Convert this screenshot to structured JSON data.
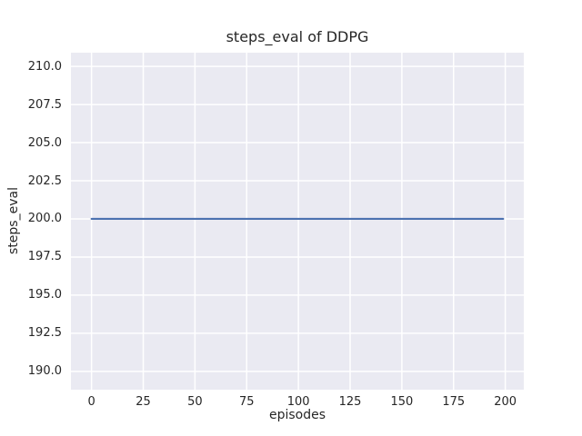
{
  "figure": {
    "title": "steps_eval of DDPG",
    "xlabel": "episodes",
    "ylabel": "steps_eval"
  },
  "chart_data": {
    "type": "line",
    "title": "steps_eval of DDPG",
    "xlabel": "episodes",
    "ylabel": "steps_eval",
    "x_ticks": [
      0,
      25,
      50,
      75,
      100,
      125,
      150,
      175,
      200
    ],
    "y_ticks": [
      190.0,
      192.5,
      195.0,
      197.5,
      200.0,
      202.5,
      205.0,
      207.5,
      210.0
    ],
    "xlim": [
      -9.95,
      208.95
    ],
    "ylim": [
      188.8,
      210.9
    ],
    "grid": true,
    "legend": false,
    "series": [
      {
        "name": "steps_eval",
        "x": [
          0,
          199
        ],
        "y": [
          200,
          200
        ],
        "color": "#4C72B0"
      }
    ],
    "colors": {
      "plot_bg": "#EAEAF2",
      "grid": "#FFFFFF",
      "line": "#4C72B0",
      "text": "#262626",
      "figure_bg": "#FFFFFF"
    }
  }
}
